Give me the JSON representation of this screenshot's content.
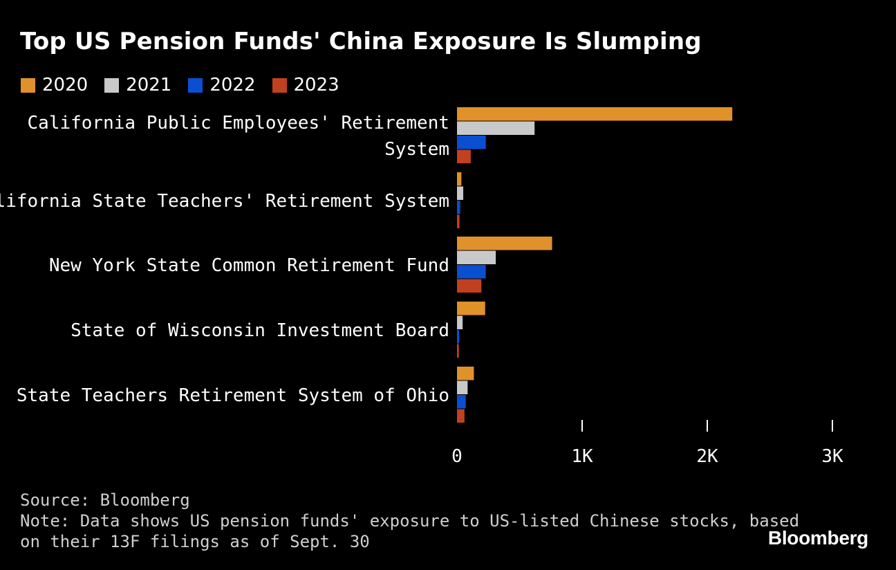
{
  "colors": {
    "background": "#000000",
    "text": "#ffffff",
    "muted": "#cfcfcf",
    "series": [
      "#e0912a",
      "#c9c9c9",
      "#0a4fd1",
      "#c1401f"
    ]
  },
  "chart_data": {
    "type": "bar",
    "orientation": "horizontal",
    "title": "Top US Pension Funds' China Exposure Is Slumping",
    "categories": [
      [
        "California Public Employees' Retirement",
        "System"
      ],
      [
        "California State Teachers' Retirement System"
      ],
      [
        "New York State Common Retirement Fund"
      ],
      [
        "State of Wisconsin Investment Board"
      ],
      [
        "State Teachers Retirement System of Ohio"
      ]
    ],
    "series": [
      {
        "name": "2020",
        "values": [
          2200,
          35,
          760,
          225,
          135
        ]
      },
      {
        "name": "2021",
        "values": [
          620,
          50,
          310,
          45,
          85
        ]
      },
      {
        "name": "2022",
        "values": [
          230,
          25,
          230,
          18,
          70
        ]
      },
      {
        "name": "2023",
        "values": [
          110,
          20,
          195,
          15,
          60
        ]
      }
    ],
    "xlim": [
      0,
      3000
    ],
    "xticks": [
      0,
      1000,
      2000,
      3000
    ],
    "xtick_labels": [
      "0",
      "1K",
      "2K",
      "3K"
    ],
    "xlabel": "",
    "ylabel": "",
    "legend_position": "top-left",
    "grid": false
  },
  "footer": {
    "source": "Source: Bloomberg",
    "note_line1": "Note: Data shows US pension funds' exposure to US-listed Chinese stocks, based",
    "note_line2": "on their 13F filings as of Sept. 30"
  },
  "brand": "Bloomberg"
}
